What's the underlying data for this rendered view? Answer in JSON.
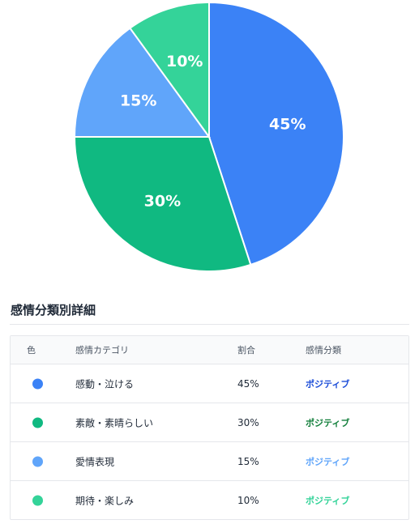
{
  "chart_data": {
    "type": "pie",
    "categories": [
      "感動・泣ける",
      "素敵・素晴らしい",
      "愛情表現",
      "期待・楽しみ"
    ],
    "values": [
      45,
      30,
      15,
      10
    ],
    "value_labels": [
      "45%",
      "30%",
      "15%",
      "10%"
    ],
    "colors": [
      "#3b82f6",
      "#10b981",
      "#60a5fa",
      "#34d399"
    ],
    "start_angle_deg": 0,
    "direction": "clockwise"
  },
  "section": {
    "title": "感情分類別詳細"
  },
  "table": {
    "headers": {
      "color": "色",
      "category": "感情カテゴリ",
      "ratio": "割合",
      "classification": "感情分類"
    },
    "rows": [
      {
        "color": "#3b82f6",
        "category": "感動・泣ける",
        "ratio": "45%",
        "classification": "ポジティブ",
        "class_color": "#1d4ed8"
      },
      {
        "color": "#10b981",
        "category": "素敵・素晴らしい",
        "ratio": "30%",
        "classification": "ポジティブ",
        "class_color": "#15803d"
      },
      {
        "color": "#60a5fa",
        "category": "愛情表現",
        "ratio": "15%",
        "classification": "ポジティブ",
        "class_color": "#60a5fa"
      },
      {
        "color": "#34d399",
        "category": "期待・楽しみ",
        "ratio": "10%",
        "classification": "ポジティブ",
        "class_color": "#34d399"
      }
    ]
  }
}
